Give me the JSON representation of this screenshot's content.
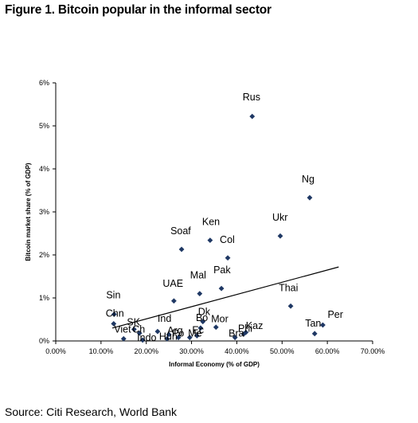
{
  "figure": {
    "title": "Figure 1. Bitcoin popular in the informal sector",
    "source": "Source: Citi Research, World Bank"
  },
  "colors": {
    "marker": "#1f3864",
    "axis": "#000000",
    "trendline": "#000000"
  },
  "chart_data": {
    "type": "scatter",
    "xlabel": "Informal Economy (% of GDP)",
    "ylabel": "Bitcoin market share (% of GDP)",
    "xlim": [
      0,
      70
    ],
    "ylim": [
      0,
      6
    ],
    "x_ticks": [
      {
        "value": 0,
        "label": "0.00%"
      },
      {
        "value": 10,
        "label": "10.00%"
      },
      {
        "value": 20,
        "label": "20.00%"
      },
      {
        "value": 30,
        "label": "30.00%"
      },
      {
        "value": 40,
        "label": "40.00%"
      },
      {
        "value": 50,
        "label": "50.00%"
      },
      {
        "value": 60,
        "label": "60.00%"
      },
      {
        "value": 70,
        "label": "70.00%"
      }
    ],
    "y_ticks": [
      {
        "value": 0,
        "label": "0%"
      },
      {
        "value": 1,
        "label": "1%"
      },
      {
        "value": 2,
        "label": "2%"
      },
      {
        "value": 3,
        "label": "3%"
      },
      {
        "value": 4,
        "label": "4%"
      },
      {
        "value": 5,
        "label": "5%"
      },
      {
        "value": 6,
        "label": "6%"
      }
    ],
    "grid": false,
    "legend": "none",
    "trendline": {
      "x": [
        12.5,
        62.5
      ],
      "y": [
        0.3,
        1.72
      ]
    },
    "points": [
      {
        "label": "Rus",
        "x": 43.4,
        "y": 5.22
      },
      {
        "label": "Ng",
        "x": 56.1,
        "y": 3.33
      },
      {
        "label": "Ukr",
        "x": 49.6,
        "y": 2.44
      },
      {
        "label": "Ken",
        "x": 34.1,
        "y": 2.34
      },
      {
        "label": "Soaf",
        "x": 27.8,
        "y": 2.13
      },
      {
        "label": "Col",
        "x": 38.0,
        "y": 1.93
      },
      {
        "label": "Pak",
        "x": 36.6,
        "y": 1.22
      },
      {
        "label": "Mal",
        "x": 31.8,
        "y": 1.1
      },
      {
        "label": "UAE",
        "x": 26.1,
        "y": 0.93
      },
      {
        "label": "Thai",
        "x": 51.9,
        "y": 0.81
      },
      {
        "label": "Sin",
        "x": 12.9,
        "y": 0.62
      },
      {
        "label": "Per",
        "x": 59.0,
        "y": 0.37
      },
      {
        "label": "Chn",
        "x": 12.8,
        "y": 0.4
      },
      {
        "label": "Viet",
        "x": 15.0,
        "y": 0.05
      },
      {
        "label": "SK",
        "x": 17.3,
        "y": 0.27
      },
      {
        "label": "Ch",
        "x": 18.5,
        "y": 0.18
      },
      {
        "label": "Indo",
        "x": 19.2,
        "y": 0.02
      },
      {
        "label": "Ind",
        "x": 22.5,
        "y": 0.22
      },
      {
        "label": "Hun",
        "x": 24.6,
        "y": 0.05
      },
      {
        "label": "Arg",
        "x": 25.0,
        "y": 0.15
      },
      {
        "label": "Po",
        "x": 27.1,
        "y": 0.08
      },
      {
        "label": "Me",
        "x": 29.6,
        "y": 0.08
      },
      {
        "label": "Bo",
        "x": 32.0,
        "y": 0.3
      },
      {
        "label": "Dk",
        "x": 32.5,
        "y": 0.45
      },
      {
        "label": "Mor",
        "x": 35.4,
        "y": 0.32
      },
      {
        "label": "Ec",
        "x": 31.2,
        "y": 0.12
      },
      {
        "label": "Bra",
        "x": 39.6,
        "y": 0.08
      },
      {
        "label": "Kaz",
        "x": 42.0,
        "y": 0.2
      },
      {
        "label": "Phi",
        "x": 41.5,
        "y": 0.16
      },
      {
        "label": "Tan",
        "x": 57.2,
        "y": 0.17
      }
    ]
  }
}
